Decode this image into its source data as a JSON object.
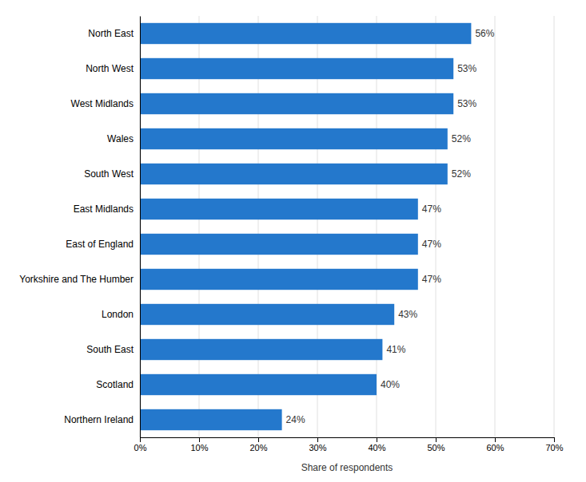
{
  "chart_data": {
    "type": "bar",
    "orientation": "horizontal",
    "categories": [
      "Northern Ireland",
      "Scotland",
      "South East",
      "London",
      "Yorkshire and The Humber",
      "East of England",
      "East Midlands",
      "South West",
      "Wales",
      "West Midlands",
      "North West",
      "North East"
    ],
    "values": [
      24,
      40,
      41,
      43,
      47,
      47,
      47,
      52,
      52,
      53,
      53,
      56
    ],
    "value_labels": [
      "24%",
      "40%",
      "41%",
      "43%",
      "47%",
      "47%",
      "47%",
      "52%",
      "52%",
      "53%",
      "53%",
      "56%"
    ],
    "data_labels": true,
    "color": "#2478cc",
    "xlabel": "Share of respondents",
    "xlim": [
      0,
      70
    ],
    "xticks": [
      {
        "value": 0,
        "label": "0%"
      },
      {
        "value": 10,
        "label": "10%"
      },
      {
        "value": 20,
        "label": "20%"
      },
      {
        "value": 30,
        "label": "30%"
      },
      {
        "value": 40,
        "label": "40%"
      },
      {
        "value": 50,
        "label": "50%"
      },
      {
        "value": 60,
        "label": "60%"
      },
      {
        "value": 70,
        "label": "70%"
      }
    ],
    "grid": true
  }
}
